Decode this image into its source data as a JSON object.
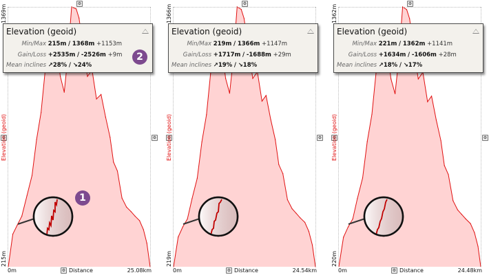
{
  "colors": {
    "profile_line": "#e01010",
    "profile_fill": "#ffd3d3",
    "badge": "#7d4a8f"
  },
  "icons": {
    "axis_button": "settings-icon",
    "collapse": "collapse-triangle-icon"
  },
  "panels": [
    {
      "info": {
        "title": "Elevation (geoid)",
        "minmax_label": "Min/Max",
        "min": "215m",
        "max": "1368m",
        "range": "+1153m",
        "gainloss_label": "Gain/Loss",
        "gain": "+2535m",
        "loss": "-2526m",
        "net": "+9m",
        "incline_label": "Mean inclines",
        "incline_up": "↗28%",
        "incline_down": "↘24%",
        "sep": "/"
      },
      "y_top": "1369m",
      "y_bottom": "215m",
      "y_title": "Elevation (geoid)",
      "x_start": "0m",
      "x_end": "25.08km",
      "x_title": "Distance",
      "badge_info": "2",
      "badge_chart": "1",
      "chart_data": {
        "type": "area",
        "xlabel": "Distance",
        "ylabel": "Elevation (geoid)",
        "xlim": [
          0,
          25.08
        ],
        "ylim": [
          215,
          1369
        ],
        "x": [
          0,
          0.8,
          1.6,
          2.4,
          3.3,
          4.2,
          5.0,
          5.8,
          6.5,
          7.2,
          7.8,
          8.5,
          9.2,
          9.9,
          10.5,
          11.2,
          12.0,
          12.5,
          13.3,
          14.0,
          14.8,
          15.6,
          16.4,
          17.2,
          18.0,
          18.6,
          19.3,
          20.1,
          20.9,
          21.7,
          22.4,
          23.2,
          23.9,
          24.5,
          25.08
        ],
        "y": [
          215,
          360,
          400,
          440,
          530,
          620,
          780,
          900,
          1080,
          1220,
          1290,
          1190,
          1060,
          990,
          1140,
          1369,
          1360,
          1320,
          1180,
          1060,
          1090,
          960,
          980,
          880,
          790,
          680,
          640,
          520,
          480,
          460,
          440,
          420,
          380,
          320,
          215
        ]
      }
    },
    {
      "info": {
        "title": "Elevation (geoid)",
        "minmax_label": "Min/Max",
        "min": "219m",
        "max": "1366m",
        "range": "+1147m",
        "gainloss_label": "Gain/Loss",
        "gain": "+1717m",
        "loss": "-1688m",
        "net": "+29m",
        "incline_label": "Mean inclines",
        "incline_up": "↗19%",
        "incline_down": "↘18%",
        "sep": "/"
      },
      "y_top": "1366m",
      "y_bottom": "219m",
      "y_title": "Elevation (geoid)",
      "x_start": "0m",
      "x_end": "24.54km",
      "x_title": "Distance",
      "chart_data": {
        "type": "area",
        "xlabel": "Distance",
        "ylabel": "Elevation (geoid)",
        "xlim": [
          0,
          24.54
        ],
        "ylim": [
          219,
          1366
        ],
        "x": [
          0,
          0.8,
          1.6,
          2.4,
          3.2,
          4.1,
          4.9,
          5.7,
          6.4,
          7.0,
          7.6,
          8.3,
          9.0,
          9.7,
          10.3,
          11.0,
          11.7,
          12.2,
          13.0,
          13.7,
          14.5,
          15.3,
          16.0,
          16.8,
          17.6,
          18.2,
          18.9,
          19.7,
          20.5,
          21.2,
          21.9,
          22.7,
          23.4,
          24.0,
          24.54
        ],
        "y": [
          219,
          350,
          395,
          430,
          520,
          610,
          770,
          890,
          1070,
          1210,
          1280,
          1185,
          1050,
          985,
          1130,
          1366,
          1355,
          1315,
          1170,
          1050,
          1080,
          950,
          975,
          870,
          780,
          670,
          630,
          515,
          475,
          455,
          435,
          415,
          375,
          315,
          219
        ]
      }
    },
    {
      "info": {
        "title": "Elevation (geoid)",
        "minmax_label": "Min/Max",
        "min": "221m",
        "max": "1362m",
        "range": "+1141m",
        "gainloss_label": "Gain/Loss",
        "gain": "+1634m",
        "loss": "-1606m",
        "net": "+28m",
        "incline_label": "Mean inclines",
        "incline_up": "↗18%",
        "incline_down": "↘17%",
        "sep": "/"
      },
      "y_top": "1362m",
      "y_bottom": "220m",
      "y_title": "Elevation (geoid)",
      "x_start": "0m",
      "x_end": "24.48km",
      "x_title": "Distance",
      "chart_data": {
        "type": "area",
        "xlabel": "Distance",
        "ylabel": "Elevation (geoid)",
        "xlim": [
          0,
          24.48
        ],
        "ylim": [
          220,
          1362
        ],
        "x": [
          0,
          0.8,
          1.6,
          2.4,
          3.2,
          4.1,
          4.9,
          5.7,
          6.4,
          7.0,
          7.6,
          8.3,
          9.0,
          9.7,
          10.3,
          11.0,
          11.7,
          12.2,
          13.0,
          13.7,
          14.5,
          15.3,
          16.0,
          16.8,
          17.6,
          18.2,
          18.9,
          19.7,
          20.5,
          21.2,
          21.9,
          22.7,
          23.4,
          24.0,
          24.48
        ],
        "y": [
          221,
          350,
          395,
          430,
          520,
          610,
          770,
          890,
          1070,
          1205,
          1275,
          1180,
          1045,
          980,
          1125,
          1362,
          1350,
          1310,
          1165,
          1045,
          1075,
          945,
          970,
          865,
          775,
          665,
          625,
          510,
          470,
          450,
          430,
          410,
          370,
          310,
          221
        ]
      }
    }
  ]
}
